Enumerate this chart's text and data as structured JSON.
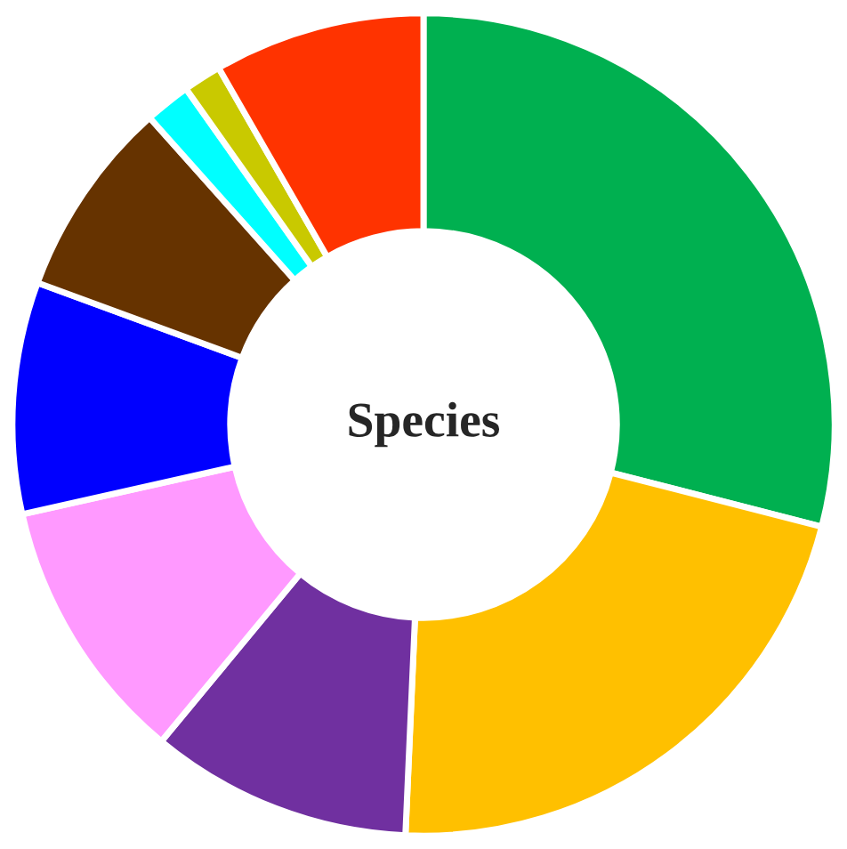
{
  "chart_data": {
    "type": "donut",
    "title": "Species",
    "categories": [
      null,
      null,
      null,
      null,
      null,
      null,
      null,
      null,
      null
    ],
    "values": [
      29,
      21.7,
      10.3,
      10.5,
      9.1,
      7.8,
      1.8,
      1.5,
      8.3
    ],
    "colors": [
      "#00b050",
      "#ffc000",
      "#7030a0",
      "#ff99ff",
      "#0000ff",
      "#663300",
      "#00ffff",
      "#c9c900",
      "#ff3300"
    ],
    "legend": false
  }
}
